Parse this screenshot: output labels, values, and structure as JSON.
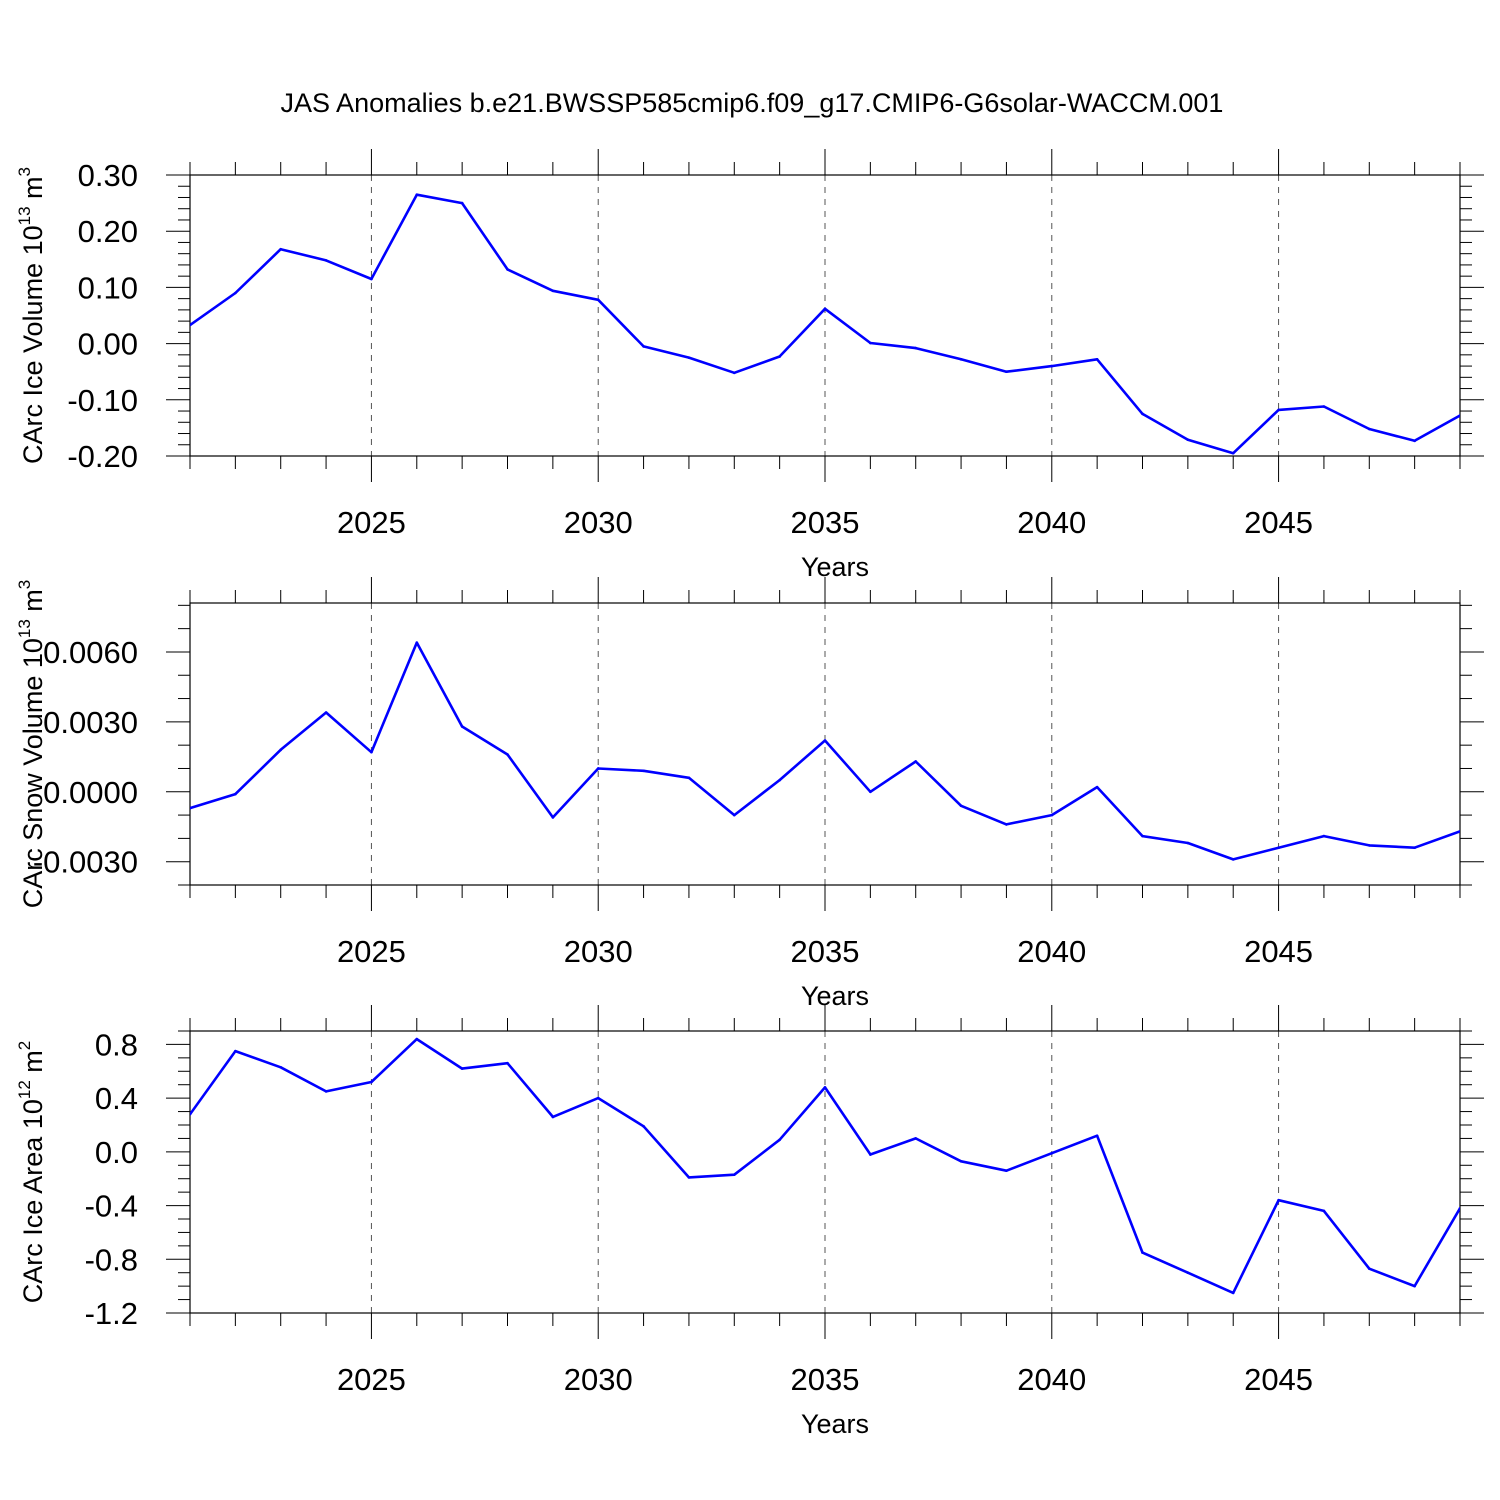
{
  "title": "JAS Anomalies b.e21.BWSSP585cmip6.f09_g17.CMIP6-G6solar-WACCM.001",
  "line_color": "#0000ff",
  "chart_data": [
    {
      "type": "line",
      "xlabel": "Years",
      "ylabel_parts": [
        "CArc Ice Volume 10",
        "13",
        " m",
        "3"
      ],
      "xlim": [
        2021,
        2049
      ],
      "ylim": [
        -0.2,
        0.3
      ],
      "x_ticks": [
        2025,
        2030,
        2035,
        2040,
        2045
      ],
      "y_ticks": [
        -0.2,
        -0.1,
        0.0,
        0.1,
        0.2,
        0.3
      ],
      "y_tick_labels": [
        "-0.20",
        "-0.10",
        "0.00",
        "0.10",
        "0.20",
        "0.30"
      ],
      "y_minor_step": 0.02,
      "series": [
        {
          "x": [
            2021,
            2022,
            2023,
            2024,
            2025,
            2026,
            2027,
            2028,
            2029,
            2030,
            2031,
            2032,
            2033,
            2034,
            2035,
            2036,
            2037,
            2038,
            2039,
            2040,
            2041,
            2042,
            2043,
            2044,
            2045,
            2046,
            2047,
            2048,
            2049
          ],
          "values": [
            0.033,
            0.09,
            0.168,
            0.148,
            0.115,
            0.265,
            0.25,
            0.132,
            0.094,
            0.078,
            -0.005,
            -0.025,
            -0.052,
            -0.023,
            0.062,
            0.001,
            -0.008,
            -0.028,
            -0.05,
            -0.04,
            -0.028,
            -0.125,
            -0.171,
            -0.195,
            -0.118,
            -0.112,
            -0.152,
            -0.173,
            -0.128
          ]
        }
      ]
    },
    {
      "type": "line",
      "xlabel": "Years",
      "ylabel_parts": [
        "CArc Snow Volume 10",
        "13",
        " m",
        "3"
      ],
      "xlim": [
        2021,
        2049
      ],
      "ylim": [
        -0.004,
        0.0081
      ],
      "x_ticks": [
        2025,
        2030,
        2035,
        2040,
        2045
      ],
      "y_ticks": [
        -0.003,
        0.0,
        0.003,
        0.006
      ],
      "y_tick_labels": [
        "-0.0030",
        "0.0000",
        "0.0030",
        "0.0060"
      ],
      "y_minor_step": 0.001,
      "series": [
        {
          "x": [
            2021,
            2022,
            2023,
            2024,
            2025,
            2026,
            2027,
            2028,
            2029,
            2030,
            2031,
            2032,
            2033,
            2034,
            2035,
            2036,
            2037,
            2038,
            2039,
            2040,
            2041,
            2042,
            2043,
            2044,
            2045,
            2046,
            2047,
            2048,
            2049
          ],
          "values": [
            -0.0007,
            -0.0001,
            0.0018,
            0.0034,
            0.0017,
            0.0064,
            0.0028,
            0.0016,
            -0.0011,
            0.001,
            0.0009,
            0.0006,
            -0.001,
            0.0005,
            0.0022,
            0.0,
            0.0013,
            -0.0006,
            -0.0014,
            -0.001,
            0.0002,
            -0.0019,
            -0.0022,
            -0.0029,
            -0.0024,
            -0.0019,
            -0.0023,
            -0.0024,
            -0.0017
          ]
        }
      ]
    },
    {
      "type": "line",
      "xlabel": "Years",
      "ylabel_parts": [
        "CArc Ice Area 10",
        "12",
        " m",
        "2"
      ],
      "xlim": [
        2021,
        2049
      ],
      "ylim": [
        -1.2,
        0.9
      ],
      "x_ticks": [
        2025,
        2030,
        2035,
        2040,
        2045
      ],
      "y_ticks": [
        -1.2,
        -0.8,
        -0.4,
        0.0,
        0.4,
        0.8
      ],
      "y_tick_labels": [
        "-1.2",
        "-0.8",
        "-0.4",
        "0.0",
        "0.4",
        "0.8"
      ],
      "y_minor_step": 0.1,
      "series": [
        {
          "x": [
            2021,
            2022,
            2023,
            2024,
            2025,
            2026,
            2027,
            2028,
            2029,
            2030,
            2031,
            2032,
            2033,
            2034,
            2035,
            2036,
            2037,
            2038,
            2039,
            2040,
            2041,
            2042,
            2043,
            2044,
            2045,
            2046,
            2047,
            2048,
            2049
          ],
          "values": [
            0.28,
            0.75,
            0.63,
            0.45,
            0.52,
            0.84,
            0.62,
            0.66,
            0.26,
            0.4,
            0.19,
            -0.19,
            -0.17,
            0.09,
            0.48,
            -0.02,
            0.1,
            -0.07,
            -0.14,
            -0.01,
            0.12,
            -0.75,
            -0.9,
            -1.05,
            -0.36,
            -0.44,
            -0.87,
            -1.0,
            -0.42
          ]
        }
      ]
    }
  ]
}
